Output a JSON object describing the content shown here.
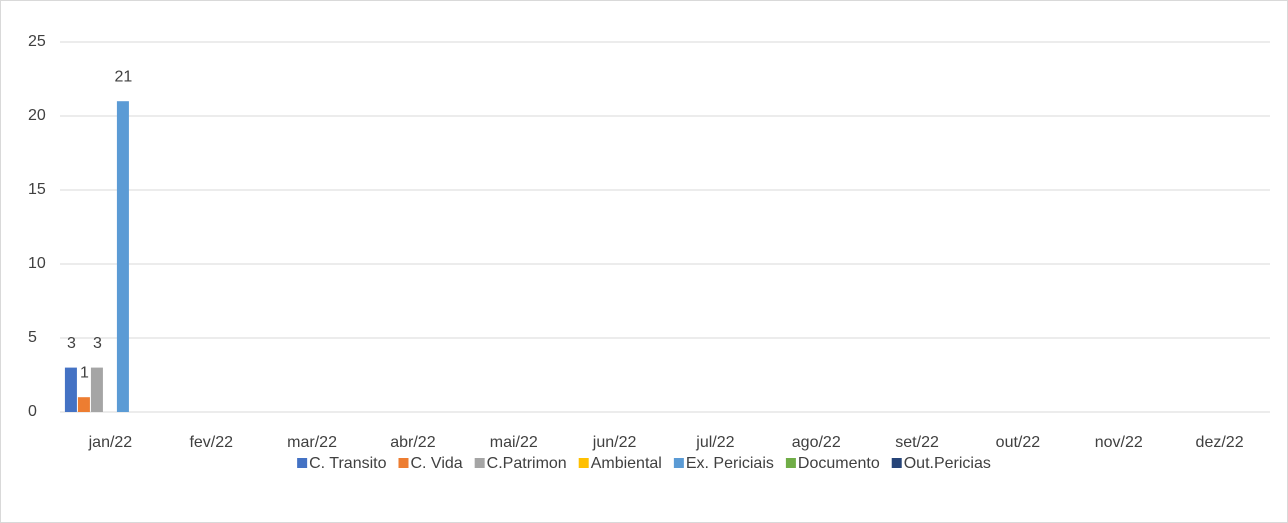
{
  "chart_data": {
    "type": "bar",
    "categories": [
      "jan/22",
      "fev/22",
      "mar/22",
      "abr/22",
      "mai/22",
      "jun/22",
      "jul/22",
      "ago/22",
      "set/22",
      "out/22",
      "nov/22",
      "dez/22"
    ],
    "series": [
      {
        "name": "C. Transito",
        "color": "#4472c4",
        "values": [
          3,
          null,
          null,
          null,
          null,
          null,
          null,
          null,
          null,
          null,
          null,
          null
        ]
      },
      {
        "name": "C. Vida",
        "color": "#ed7d31",
        "values": [
          1,
          null,
          null,
          null,
          null,
          null,
          null,
          null,
          null,
          null,
          null,
          null
        ]
      },
      {
        "name": "C.Patrimon",
        "color": "#a5a5a5",
        "values": [
          3,
          null,
          null,
          null,
          null,
          null,
          null,
          null,
          null,
          null,
          null,
          null
        ]
      },
      {
        "name": "Ambiental",
        "color": "#ffc000",
        "values": [
          null,
          null,
          null,
          null,
          null,
          null,
          null,
          null,
          null,
          null,
          null,
          null
        ]
      },
      {
        "name": "Ex. Periciais",
        "color": "#5b9bd5",
        "values": [
          21,
          null,
          null,
          null,
          null,
          null,
          null,
          null,
          null,
          null,
          null,
          null
        ]
      },
      {
        "name": "Documento",
        "color": "#70ad47",
        "values": [
          null,
          null,
          null,
          null,
          null,
          null,
          null,
          null,
          null,
          null,
          null,
          null
        ]
      },
      {
        "name": "Out.Pericias",
        "color": "#264478",
        "values": [
          null,
          null,
          null,
          null,
          null,
          null,
          null,
          null,
          null,
          null,
          null,
          null
        ]
      }
    ],
    "ylim": [
      0,
      25
    ],
    "yticks": [
      0,
      5,
      10,
      15,
      20,
      25
    ],
    "grid": true,
    "legend": "bottom"
  }
}
